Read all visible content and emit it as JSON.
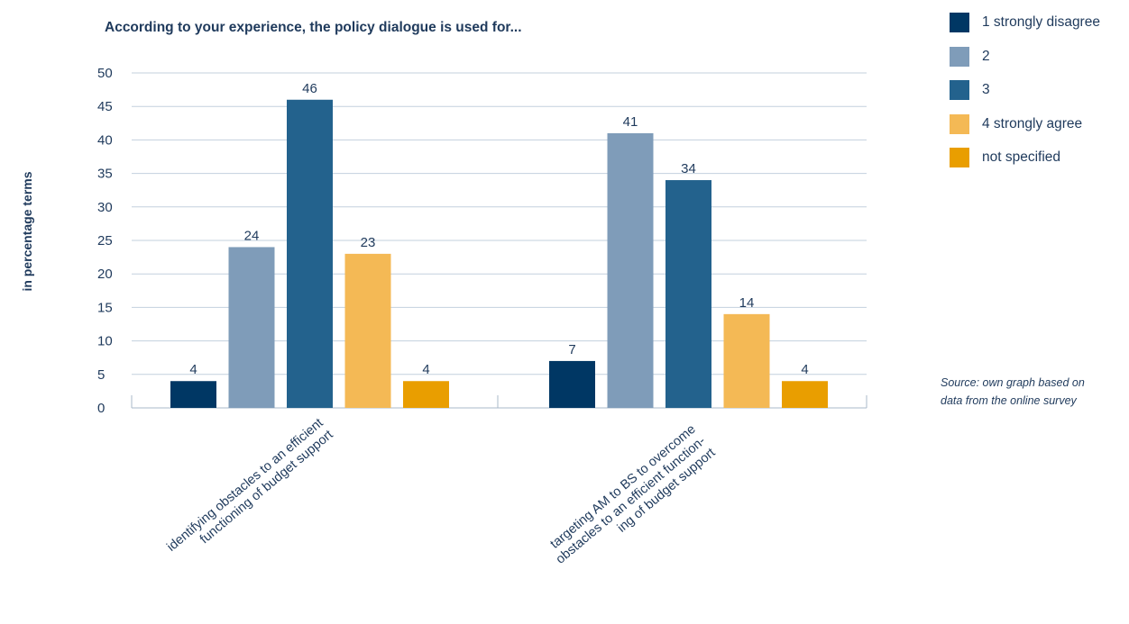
{
  "chart_data": {
    "type": "bar",
    "title": "According to your experience, the policy dialogue is used for...",
    "xlabel": "",
    "ylabel": "in percentage terms",
    "ylim": [
      0,
      50
    ],
    "yticks": [
      "0",
      "5",
      "10",
      "15",
      "20",
      "25",
      "30",
      "35",
      "40",
      "45",
      "50"
    ],
    "grid": true,
    "legend_position": "top-right",
    "categories": [
      [
        "identifying obstacles to an efficient",
        "functioning of budget support"
      ],
      [
        "targeting AM to BS to overcome",
        "obstacles to an efficient function-",
        "ing of budget support"
      ]
    ],
    "series": [
      {
        "name": "1 strongly disagree",
        "color": "#003764",
        "values": [
          4,
          7
        ]
      },
      {
        "name": "2",
        "color": "#7f9cb9",
        "values": [
          24,
          41
        ]
      },
      {
        "name": "3",
        "color": "#23628d",
        "values": [
          46,
          34
        ]
      },
      {
        "name": "4 strongly agree",
        "color": "#f4b955",
        "values": [
          23,
          14
        ]
      },
      {
        "name": "not specified",
        "color": "#e99e00",
        "values": [
          4,
          4
        ]
      }
    ],
    "data_labels": [
      [
        "4",
        "7"
      ],
      [
        "24",
        "41"
      ],
      [
        "46",
        "34"
      ],
      [
        "23",
        "14"
      ],
      [
        "4",
        "4"
      ]
    ]
  },
  "source_note": [
    "Source: own graph based on",
    "data from the online survey"
  ],
  "colors": {
    "text": "#1f3a5c",
    "grid": "#c3d0de",
    "axis": "#a8b8c8"
  }
}
